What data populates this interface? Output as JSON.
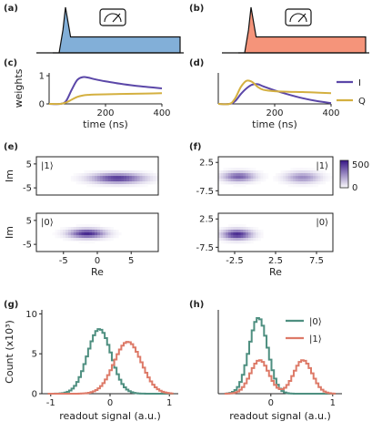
{
  "colors": {
    "purple": "#5b47a8",
    "gold": "#d4b040",
    "blue_pulse": "#82afd8",
    "orange_pulse": "#f5947a",
    "teal": "#4e8f80",
    "salmon": "#dd7a68",
    "heat_max": "#3a1a88"
  },
  "panel_labels": [
    "(a)",
    "(b)",
    "(c)",
    "(d)",
    "(e)",
    "(f)",
    "(g)",
    "(h)"
  ],
  "icons": [
    "meter-icon",
    "meter-icon"
  ],
  "chart_data": [
    {
      "panel": "a",
      "type": "area",
      "title": "",
      "xlabel": "",
      "ylabel": "",
      "description_points": {
        "x": [
          0,
          0.05,
          0.08,
          0.1,
          0.14,
          0.2,
          1.0
        ],
        "y": [
          0,
          0,
          0.5,
          1.0,
          0.35,
          0.35,
          0.35
        ]
      },
      "color": "#82afd8"
    },
    {
      "panel": "b",
      "type": "area",
      "title": "",
      "xlabel": "",
      "ylabel": "",
      "description_points": {
        "x": [
          0,
          0.05,
          0.08,
          0.1,
          0.14,
          0.2,
          1.0
        ],
        "y": [
          0,
          0,
          0.5,
          1.0,
          0.35,
          0.35,
          0.35
        ]
      },
      "color": "#f5947a"
    },
    {
      "panel": "c",
      "type": "line",
      "xlabel": "time (ns)",
      "ylabel": "weights",
      "xlim": [
        0,
        400
      ],
      "ylim": [
        0,
        1.1
      ],
      "xticks": [
        200,
        400
      ],
      "yticks": [
        0,
        1
      ],
      "x": [
        0,
        40,
        60,
        80,
        100,
        120,
        140,
        160,
        200,
        250,
        300,
        350,
        400
      ],
      "series": [
        {
          "name": "I",
          "color": "#5b47a8",
          "values": [
            0,
            0,
            0.1,
            0.5,
            0.85,
            0.95,
            0.93,
            0.88,
            0.8,
            0.72,
            0.65,
            0.6,
            0.55
          ]
        },
        {
          "name": "Q",
          "color": "#d4b040",
          "values": [
            0,
            0,
            0.05,
            0.15,
            0.25,
            0.3,
            0.32,
            0.33,
            0.34,
            0.35,
            0.36,
            0.37,
            0.38
          ]
        }
      ]
    },
    {
      "panel": "d",
      "type": "line",
      "xlabel": "time (ns)",
      "ylabel": "",
      "xlim": [
        0,
        400
      ],
      "ylim": [
        0,
        1.1
      ],
      "xticks": [
        200,
        400
      ],
      "yticks": [],
      "legend": [
        "I",
        "Q"
      ],
      "x": [
        0,
        40,
        60,
        80,
        100,
        120,
        140,
        160,
        200,
        250,
        300,
        350,
        400
      ],
      "series": [
        {
          "name": "I",
          "color": "#5b47a8",
          "values": [
            0,
            0,
            0.1,
            0.35,
            0.55,
            0.68,
            0.7,
            0.62,
            0.48,
            0.33,
            0.2,
            0.1,
            0.03
          ]
        },
        {
          "name": "Q",
          "color": "#d4b040",
          "values": [
            0,
            0,
            0.2,
            0.6,
            0.82,
            0.78,
            0.6,
            0.5,
            0.45,
            0.43,
            0.42,
            0.4,
            0.38
          ]
        }
      ]
    },
    {
      "panel": "e-top",
      "type": "heatmap",
      "ylabel": "Im",
      "inset_label": "|1⟩",
      "xlim": [
        -9,
        9
      ],
      "ylim": [
        -8,
        8
      ],
      "yticks": [
        5,
        -5
      ],
      "blobs": [
        {
          "cx": 3,
          "cy": -1,
          "sx": 2.6,
          "sy": 1.4,
          "peak": 520
        }
      ]
    },
    {
      "panel": "e-bottom",
      "type": "heatmap",
      "xlabel": "Re",
      "ylabel": "Im",
      "inset_label": "|0⟩",
      "xlim": [
        -9,
        9
      ],
      "ylim": [
        -8,
        8
      ],
      "xticks": [
        -5,
        0,
        5
      ],
      "yticks": [
        5,
        -5
      ],
      "blobs": [
        {
          "cx": -1.5,
          "cy": -0.5,
          "sx": 1.8,
          "sy": 1.3,
          "peak": 560
        }
      ]
    },
    {
      "panel": "f-top",
      "type": "heatmap",
      "inset_label": "|1⟩",
      "xlim": [
        -4.5,
        9.5
      ],
      "ylim": [
        -9,
        4.5
      ],
      "yticks": [
        2.5,
        -7.5
      ],
      "colorbar": {
        "ticks": [
          500,
          0
        ]
      },
      "blobs": [
        {
          "cx": -2,
          "cy": -2.5,
          "sx": 1.3,
          "sy": 1.2,
          "peak": 420
        },
        {
          "cx": 5.8,
          "cy": -2.8,
          "sx": 1.4,
          "sy": 1.3,
          "peak": 300
        }
      ]
    },
    {
      "panel": "f-bottom",
      "type": "heatmap",
      "xlabel": "Re",
      "inset_label": "|0⟩",
      "xlim": [
        -4.5,
        9.5
      ],
      "ylim": [
        -9,
        4.5
      ],
      "xticks": [
        -2.5,
        2.5,
        7.5
      ],
      "yticks": [
        2.5,
        -7.5
      ],
      "blobs": [
        {
          "cx": -2.2,
          "cy": -3.0,
          "sx": 1.2,
          "sy": 1.2,
          "peak": 560
        }
      ]
    },
    {
      "panel": "g",
      "type": "line",
      "xlabel": "readout signal (a.u.)",
      "ylabel": "Count (x10³)",
      "xlim": [
        -1.15,
        1.15
      ],
      "ylim": [
        0,
        10.5
      ],
      "xticks": [
        -1,
        0,
        1
      ],
      "yticks": [
        0,
        5,
        10
      ],
      "series": [
        {
          "name": "|0⟩",
          "color": "#4e8f80",
          "mu": -0.2,
          "sigma": 0.2,
          "peak": 8.1
        },
        {
          "name": "|1⟩",
          "color": "#dd7a68",
          "mu": 0.28,
          "sigma": 0.23,
          "peak": 6.5
        }
      ]
    },
    {
      "panel": "h",
      "type": "line",
      "xlabel": "readout signal (a.u.)",
      "xlim": [
        -0.85,
        1.15
      ],
      "ylim": [
        0,
        10.5
      ],
      "xticks": [
        0,
        1
      ],
      "yticks": [],
      "legend": [
        "|0⟩",
        "|1⟩"
      ],
      "series": [
        {
          "name": "|0⟩",
          "color": "#4e8f80",
          "mu": -0.22,
          "sigma": 0.15,
          "peak": 9.5
        },
        {
          "name": "|1⟩",
          "color": "#dd7a68",
          "mu": 0.0,
          "sigma": 0.0,
          "peak": 0.0,
          "components": [
            {
              "mu": -0.2,
              "sigma": 0.15,
              "peak": 4.2
            },
            {
              "mu": 0.5,
              "sigma": 0.15,
              "peak": 4.2
            }
          ]
        }
      ]
    }
  ]
}
